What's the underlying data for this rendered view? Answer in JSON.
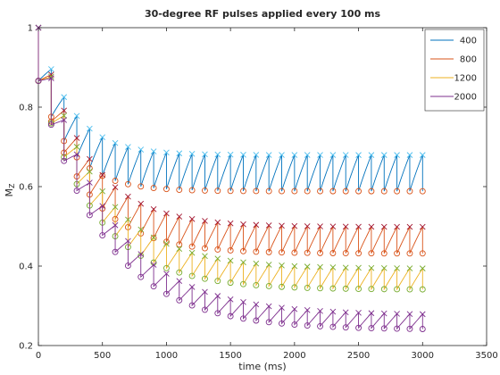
{
  "chart_data": {
    "type": "line",
    "title": "30-degree RF pulses applied every 100 ms",
    "xlabel": "time (ms)",
    "ylabel": "M",
    "ylabel_subscript": "Z",
    "xlim": [
      0,
      3500
    ],
    "ylim": [
      0.2,
      1
    ],
    "xticks": [
      0,
      500,
      1000,
      1500,
      2000,
      2500,
      3000,
      3500
    ],
    "yticks": [
      0.2,
      0.4,
      0.6,
      0.8,
      1
    ],
    "xtick_labels": [
      "0",
      "500",
      "1000",
      "1500",
      "2000",
      "2500",
      "3000",
      "3500"
    ],
    "ytick_labels": [
      "0.2",
      "0.4",
      "0.6",
      "0.8",
      "1"
    ],
    "legend_position": "top-right",
    "grid": false,
    "pulse_interval_ms": 100,
    "flip_angle_deg": 30,
    "markers": {
      "before_pulse": "x",
      "after_pulse": "o"
    },
    "series": [
      {
        "name": "400",
        "t1": 400,
        "color": "#0072BD",
        "steady_state_before": 0.68,
        "steady_state_after": 0.59
      },
      {
        "name": "800",
        "t1": 800,
        "color": "#D95319",
        "steady_state_before": 0.5,
        "steady_state_after": 0.43
      },
      {
        "name": "1200",
        "t1": 1200,
        "color": "#EDB120",
        "steady_state_before": 0.39,
        "steady_state_after": 0.34
      },
      {
        "name": "2000",
        "t1": 2000,
        "color": "#7E2F8E",
        "steady_state_before": 0.28,
        "steady_state_after": 0.24
      }
    ],
    "legend_entries": [
      "400",
      "800",
      "1200",
      "2000"
    ]
  }
}
